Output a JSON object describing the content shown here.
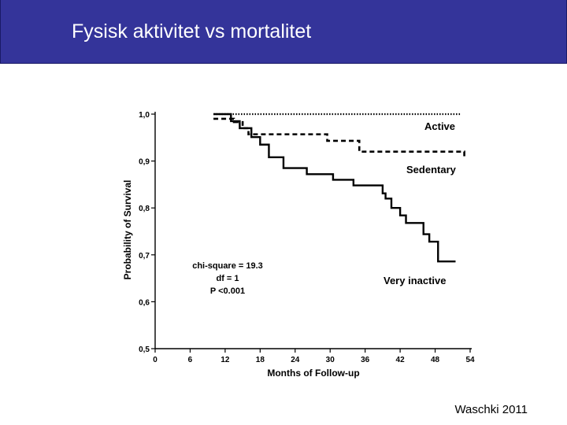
{
  "slide": {
    "title": "Fysisk aktivitet vs mortalitet",
    "credit": "Waschki 2011",
    "header_color": "#34349a"
  },
  "chart_data": {
    "type": "line",
    "xlabel": "Months of Follow-up",
    "ylabel": "Probability of Survival",
    "xlim": [
      0,
      54
    ],
    "ylim": [
      0.5,
      1.0
    ],
    "x_ticks": [
      "0",
      "6",
      "12",
      "18",
      "24",
      "30",
      "36",
      "42",
      "48",
      "54"
    ],
    "y_ticks": [
      "0,5",
      "0,6",
      "0,7",
      "0,8",
      "0,9",
      "1,0"
    ],
    "grid": false,
    "series": [
      {
        "name": "Active",
        "style": "dotted",
        "step": [
          [
            10,
            1.0
          ],
          [
            52.5,
            1.0
          ]
        ]
      },
      {
        "name": "Sedentary",
        "style": "dashed",
        "step": [
          [
            10,
            0.99
          ],
          [
            13.5,
            0.983
          ],
          [
            15,
            0.97
          ],
          [
            16,
            0.957
          ],
          [
            29.5,
            0.943
          ],
          [
            35,
            0.92
          ],
          [
            53,
            0.91
          ]
        ]
      },
      {
        "name": "Very inactive",
        "style": "solid",
        "step": [
          [
            10,
            1.0
          ],
          [
            13,
            0.985
          ],
          [
            14.5,
            0.97
          ],
          [
            16.5,
            0.951
          ],
          [
            18,
            0.935
          ],
          [
            19.5,
            0.908
          ],
          [
            22,
            0.885
          ],
          [
            26,
            0.872
          ],
          [
            30.5,
            0.86
          ],
          [
            34,
            0.848
          ],
          [
            39,
            0.831
          ],
          [
            39.5,
            0.82
          ],
          [
            40.5,
            0.8
          ],
          [
            42,
            0.784
          ],
          [
            43,
            0.768
          ],
          [
            46,
            0.744
          ],
          [
            47,
            0.728
          ],
          [
            48.5,
            0.686
          ],
          [
            51.5,
            0.686
          ]
        ]
      }
    ],
    "annotations": {
      "chi_square": "chi-square = 19.3",
      "df": "df = 1",
      "p_value": "P <0.001"
    }
  }
}
